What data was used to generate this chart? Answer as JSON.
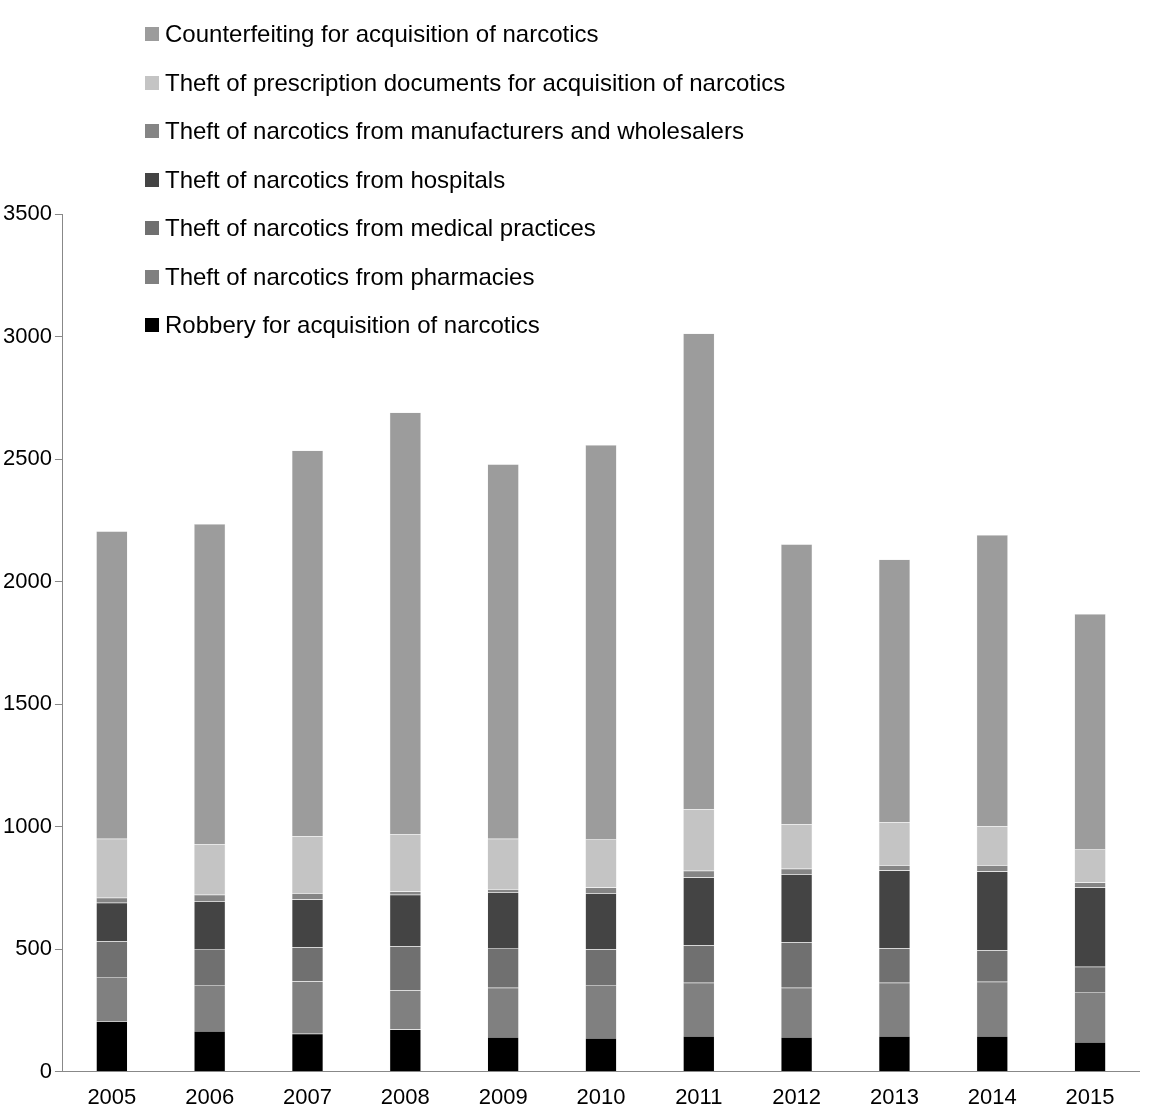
{
  "chart_data": {
    "type": "bar",
    "stacked": true,
    "categories": [
      "2005",
      "2006",
      "2007",
      "2008",
      "2009",
      "2010",
      "2011",
      "2012",
      "2013",
      "2014",
      "2015"
    ],
    "series": [
      {
        "name": "Robbery for acquisition of narcotics",
        "color": "#000000",
        "values": [
          205,
          166,
          154,
          172,
          141,
          137,
          145,
          141,
          145,
          145,
          121
        ]
      },
      {
        "name": "Theft of narcotics from pharmacies",
        "color": "#808080",
        "values": [
          181,
          187,
          214,
          160,
          201,
          216,
          218,
          201,
          218,
          222,
          204
        ]
      },
      {
        "name": "Theft of narcotics from medical practices",
        "color": "#707070",
        "values": [
          145,
          147,
          139,
          179,
          162,
          145,
          152,
          185,
          140,
          127,
          103
        ]
      },
      {
        "name": "Theft of narcotics from hospitals",
        "color": "#444444",
        "values": [
          158,
          195,
          195,
          211,
          228,
          230,
          277,
          278,
          318,
          323,
          323
        ]
      },
      {
        "name": "Theft of narcotics from manufacturers and wholesalers",
        "color": "#858585",
        "values": [
          21,
          27,
          26,
          13,
          12,
          23,
          28,
          23,
          21,
          25,
          21
        ]
      },
      {
        "name": "Theft of prescription documents for acquisition of narcotics",
        "color": "#c4c4c4",
        "values": [
          240,
          205,
          232,
          233,
          206,
          198,
          251,
          181,
          176,
          159,
          136
        ]
      },
      {
        "name": "Counterfeiting for acquisition of narcotics",
        "color": "#9c9c9c",
        "values": [
          1255,
          1308,
          1575,
          1722,
          1529,
          1608,
          1941,
          1143,
          1072,
          1189,
          960
        ]
      }
    ],
    "ylim": [
      0,
      3500
    ],
    "yticks": [
      0,
      500,
      1000,
      1500,
      2000,
      2500,
      3000,
      3500
    ],
    "grid": false,
    "legend": "top left"
  }
}
